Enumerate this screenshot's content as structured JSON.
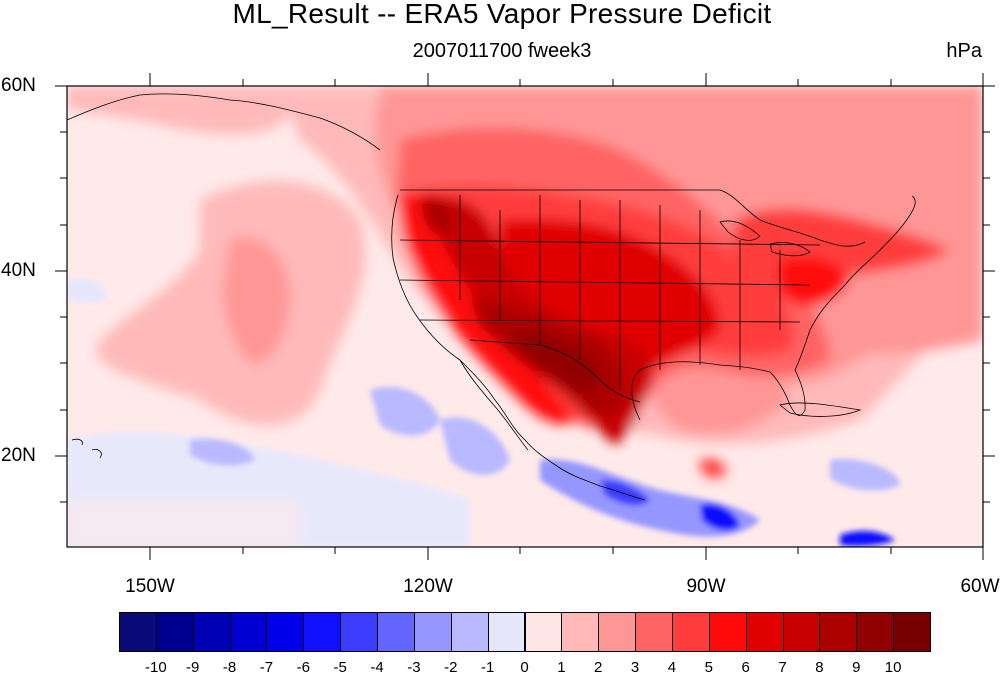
{
  "figure": {
    "title": "ML_Result -- ERA5 Vapor Pressure Deficit",
    "subtitle": "2007011700 fweek3",
    "units": "hPa"
  },
  "axes": {
    "lat_labels": [
      "60N",
      "40N",
      "20N"
    ],
    "lon_labels": [
      "150W",
      "120W",
      "90W",
      "60W"
    ]
  },
  "colorbar": {
    "labels": [
      "-10",
      "-9",
      "-8",
      "-7",
      "-6",
      "-5",
      "-4",
      "-3",
      "-2",
      "-1",
      "0",
      "1",
      "2",
      "3",
      "4",
      "5",
      "6",
      "7",
      "8",
      "9",
      "10"
    ],
    "colors": [
      "#0a0a78",
      "#000090",
      "#0000b4",
      "#0000d2",
      "#0000ea",
      "#1010ff",
      "#3c3cff",
      "#6464ff",
      "#9696ff",
      "#b9b9ff",
      "#e6e6fa",
      "#ffe6e6",
      "#ffb9b9",
      "#ff9696",
      "#ff6464",
      "#ff3c3c",
      "#ff0a0a",
      "#e10000",
      "#c80000",
      "#aa0000",
      "#910000",
      "#780000"
    ]
  },
  "map_colors": {
    "land_outline": "#000000",
    "background": "#ffeaea"
  }
}
